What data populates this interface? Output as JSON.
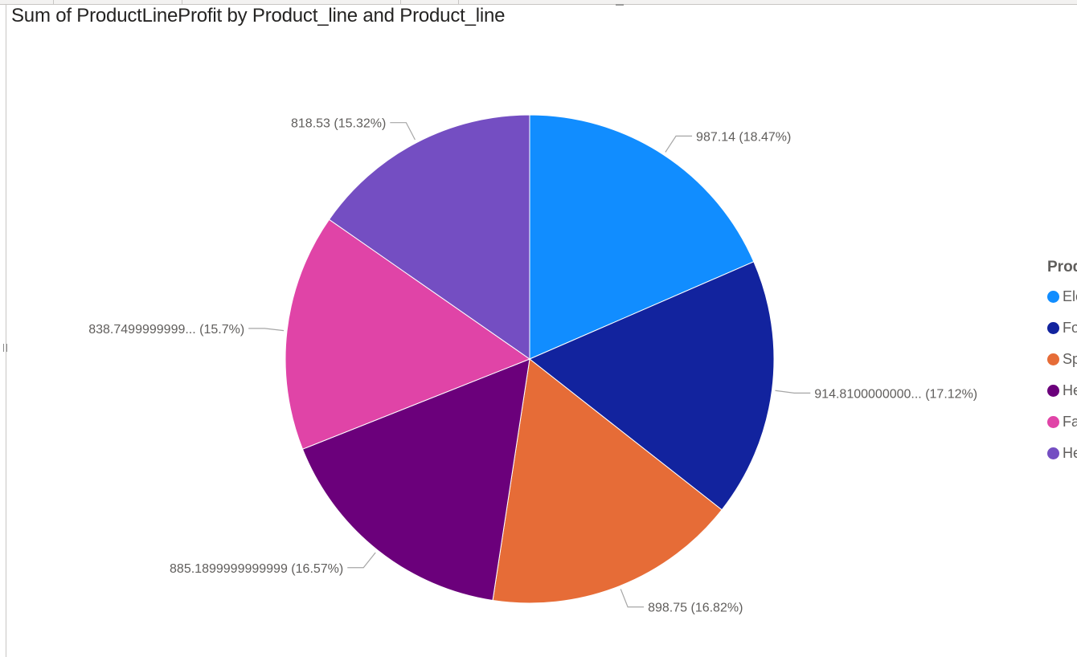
{
  "chart_data": {
    "type": "pie",
    "title": "Sum of ProductLineProfit by Product_line and Product_line",
    "legend_title": "Prod",
    "legend_position": "right",
    "slices": [
      {
        "legend": "Ele",
        "value": 987.14,
        "value_label": "987.14",
        "percent_label": "18.47%",
        "color": "#118dff"
      },
      {
        "legend": "Fo",
        "value": 914.81,
        "value_label": "914.8100000000...",
        "percent_label": "17.12%",
        "color": "#12239e"
      },
      {
        "legend": "Sp",
        "value": 898.75,
        "value_label": "898.75",
        "percent_label": "16.82%",
        "color": "#e66c37"
      },
      {
        "legend": "He",
        "value": 885.19,
        "value_label": "885.1899999999999",
        "percent_label": "16.57%",
        "color": "#6b007b"
      },
      {
        "legend": "Fa",
        "value": 838.75,
        "value_label": "838.7499999999...",
        "percent_label": "15.7%",
        "color": "#e044a7"
      },
      {
        "legend": "He",
        "value": 818.53,
        "value_label": "818.53",
        "percent_label": "15.32%",
        "color": "#744ec2"
      }
    ]
  }
}
